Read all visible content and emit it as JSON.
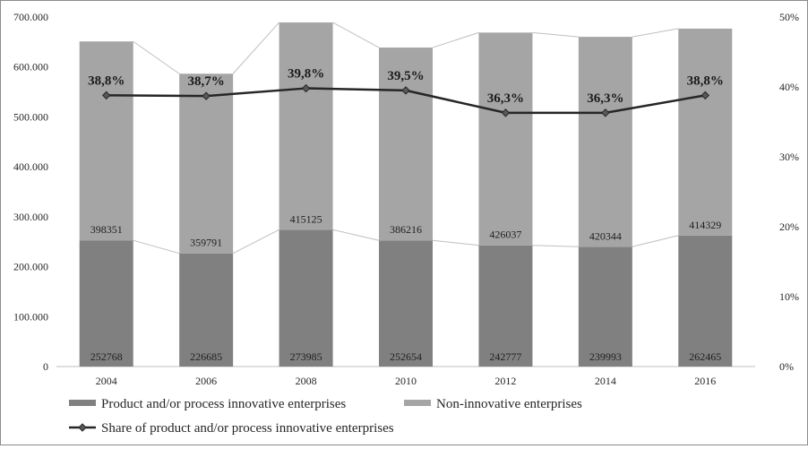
{
  "chart_data": {
    "type": "bar",
    "stacked": true,
    "categories": [
      "2004",
      "2006",
      "2008",
      "2010",
      "2012",
      "2014",
      "2016"
    ],
    "series": [
      {
        "name": "Product and/or process innovative enterprises",
        "values": [
          252768,
          226685,
          273985,
          252654,
          242777,
          239993,
          262465
        ],
        "color": "#808080"
      },
      {
        "name": "Non-innovative enterprises",
        "values": [
          398351,
          359791,
          415125,
          386216,
          426037,
          420344,
          414329
        ],
        "color": "#a5a5a5"
      }
    ],
    "line_series": {
      "name": "Share of product and/or process innovative enterprises",
      "axis": "right",
      "values": [
        38.8,
        38.7,
        39.8,
        39.5,
        36.3,
        36.3,
        38.8
      ],
      "labels": [
        "38,8%",
        "38,7%",
        "39,8%",
        "39,5%",
        "36,3%",
        "36,3%",
        "38,8%"
      ],
      "color": "#262626",
      "marker": "diamond"
    },
    "y_left": {
      "ylim": [
        0,
        700000
      ],
      "ticks": [
        0,
        100000,
        200000,
        300000,
        400000,
        500000,
        600000,
        700000
      ],
      "tick_labels": [
        "0",
        "100.000",
        "200.000",
        "300.000",
        "400.000",
        "500.000",
        "600.000",
        "700.000"
      ]
    },
    "y_right": {
      "ylim": [
        0,
        50
      ],
      "ticks": [
        0,
        10,
        20,
        30,
        40,
        50
      ],
      "tick_labels": [
        "0%",
        "10%",
        "20%",
        "30%",
        "40%",
        "50%"
      ]
    },
    "series_lines": true,
    "grid": false,
    "legend_position": "bottom"
  }
}
